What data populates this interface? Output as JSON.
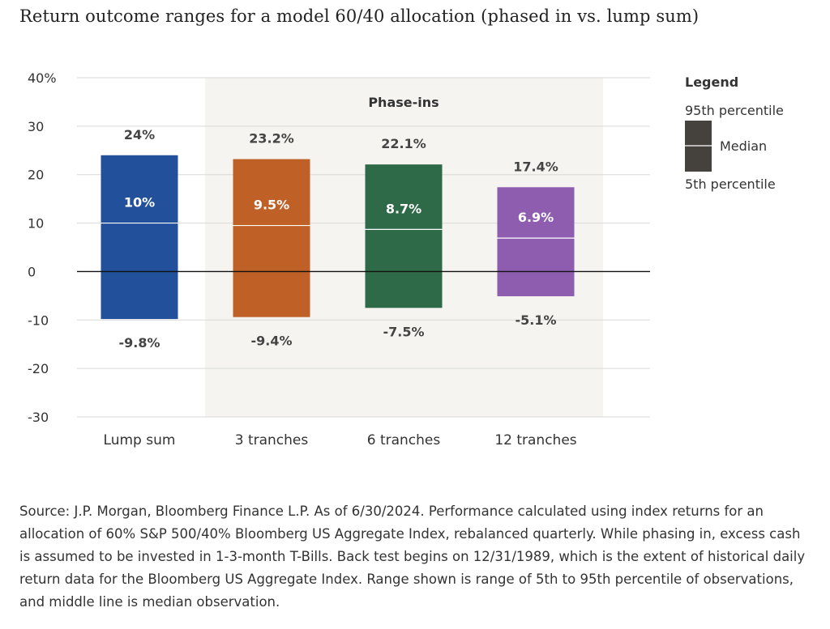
{
  "title": "Return outcome ranges for a model 60/40 allocation (phased in vs. lump sum)",
  "chart_data": {
    "type": "range-bar",
    "ylim": [
      -30,
      40
    ],
    "yticks": [
      40,
      30,
      20,
      10,
      0,
      -10,
      -20,
      -30
    ],
    "ytick_labels": [
      "40%",
      "30",
      "20",
      "10",
      "0",
      "-10",
      "-20",
      "-30"
    ],
    "categories": [
      "Lump sum",
      "3 tranches",
      "6 tranches",
      "12 tranches"
    ],
    "p95": [
      24,
      23.2,
      22.1,
      17.4
    ],
    "median": [
      10,
      9.5,
      8.7,
      6.9
    ],
    "p5": [
      -9.8,
      -9.4,
      -7.5,
      -5.1
    ],
    "p95_labels": [
      "24%",
      "23.2%",
      "22.1%",
      "17.4%"
    ],
    "median_labels": [
      "10%",
      "9.5%",
      "8.7%",
      "6.9%"
    ],
    "p5_labels": [
      "-9.8%",
      "-9.4%",
      "-7.5%",
      "-5.1%"
    ],
    "colors": [
      "#23509a",
      "#bf6127",
      "#2f6a48",
      "#8f5db0"
    ],
    "shaded_region_label": "Phase-ins",
    "shade_color": "#f5f4f0",
    "legend": {
      "title": "Legend",
      "top": "95th percentile",
      "middle": "Median",
      "bottom": "5th percentile",
      "swatch_color": "#45413d"
    }
  },
  "source": "Source: J.P. Morgan, Bloomberg Finance L.P. As of 6/30/2024. Performance calculated using index returns for an allocation of 60% S&P 500/40% Bloomberg US Aggregate Index, rebalanced quarterly. While phasing in, excess cash is assumed to be invested in 1-3-month T-Bills. Back test begins on 12/31/1989, which is the extent of historical daily return data for the Bloomberg US Aggregate Index. Range shown is range of 5th to 95th percentile of observations, and middle line is median observation."
}
